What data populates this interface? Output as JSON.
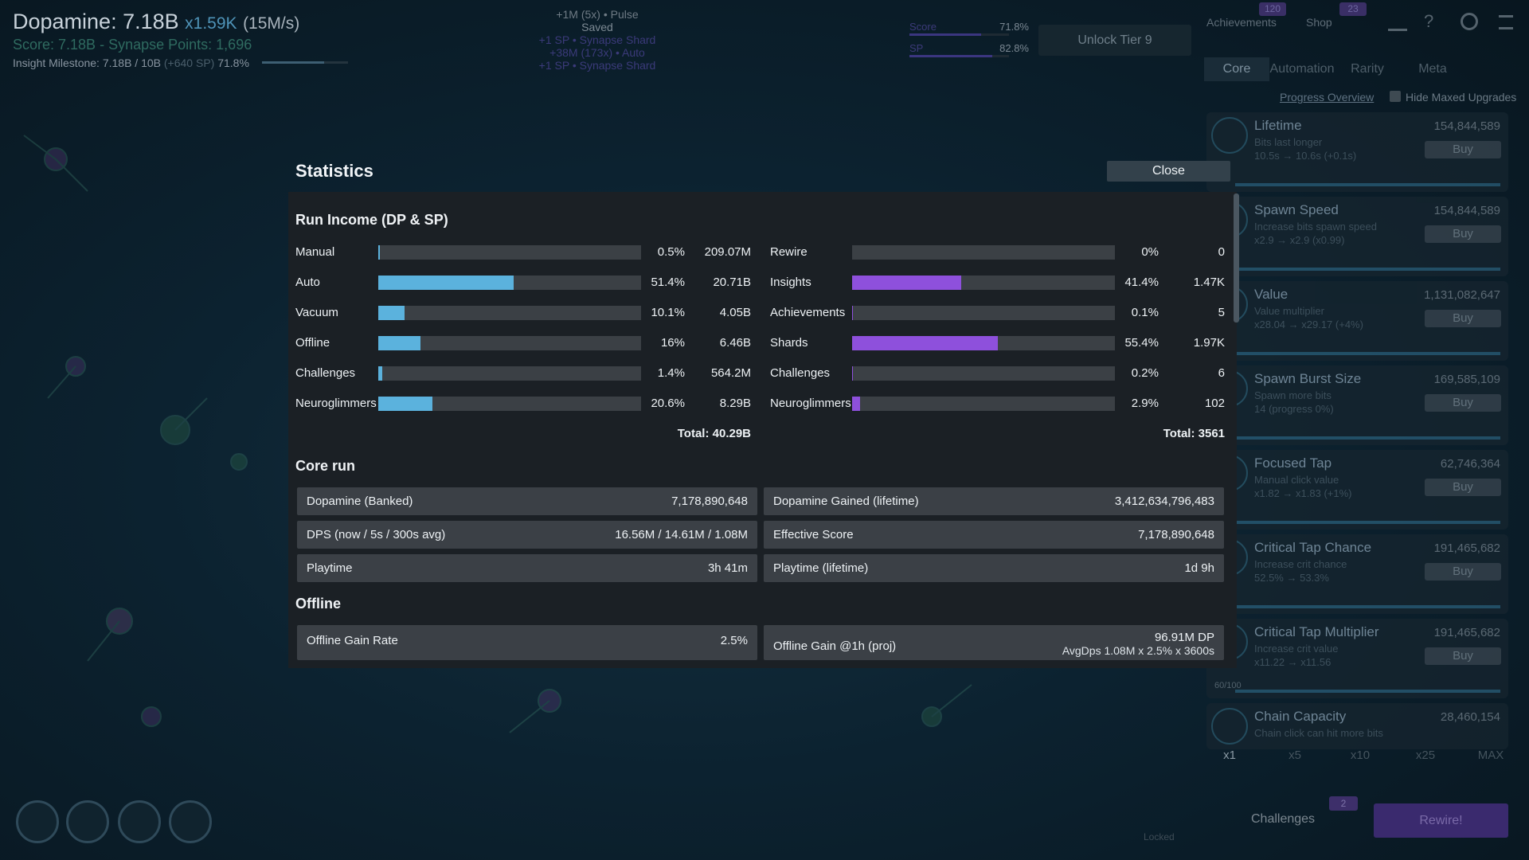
{
  "header": {
    "dopamine": "Dopamine: 7.18B",
    "multiplier": "x1.59K",
    "rate": "(15M/s)",
    "score": "Score: 7.18B",
    "separator": "-",
    "synapse_points": "Synapse Points: 1,696",
    "milestone_label": "Insight Milestone: 7.18B / 10B",
    "milestone_bonus": "(+640 SP)",
    "milestone_percent": 71.8,
    "milestone_percent_label": "71.8%"
  },
  "notifications": [
    "+1M (5x) • Pulse",
    "Saved",
    "+1 SP • Synapse Shard",
    "+38M (173x) • Auto",
    "+1 SP • Synapse Shard"
  ],
  "progress": [
    {
      "label": "Score",
      "percent": 71.8,
      "percent_label": "71.8%"
    },
    {
      "label": "SP",
      "percent": 82.8,
      "percent_label": "82.8%"
    }
  ],
  "unlock_button": "Unlock Tier 9",
  "nav": [
    {
      "label": "Achievements",
      "badge": "120"
    },
    {
      "label": "Shop",
      "badge": "23"
    }
  ],
  "tabs": [
    "Core",
    "Automation",
    "Rarity",
    "Meta"
  ],
  "progress_overview": "Progress Overview",
  "hide_maxed": "Hide Maxed Upgrades",
  "upgrades": [
    {
      "name": "Lifetime",
      "description": "Bits last longer",
      "detail": "10.5s → 10.6s (+0.1s)",
      "cost": "154,844,589",
      "button": "Buy"
    },
    {
      "name": "Spawn Speed",
      "description": "Increase bits spawn speed",
      "detail": "x2.9 → x2.9 (x0.99)",
      "cost": "154,844,589",
      "button": "Buy"
    },
    {
      "name": "Value",
      "description": "Value multiplier",
      "detail": "x28.04 → x29.17 (+4%)",
      "cost": "1,131,082,647",
      "button": "Buy"
    },
    {
      "name": "Spawn Burst Size",
      "description": "Spawn more bits",
      "detail": "14  (progress 0%)",
      "cost": "169,585,109",
      "button": "Buy"
    },
    {
      "name": "Focused Tap",
      "description": "Manual click value",
      "detail": "x1.82 → x1.83 (+1%)",
      "cost": "62,746,364",
      "button": "Buy"
    },
    {
      "name": "Critical Tap Chance",
      "description": "Increase crit chance",
      "detail": "52.5% → 53.3%",
      "cost": "191,465,682",
      "button": "Buy"
    },
    {
      "name": "Critical Tap Multiplier",
      "description": "Increase crit value",
      "detail": "x11.22 → x11.56",
      "cost": "191,465,682",
      "button": "Buy",
      "level": "60/100"
    },
    {
      "name": "Chain Capacity",
      "description": "Chain click can hit more bits",
      "cost": "28,460,154"
    }
  ],
  "buy_amounts": [
    "x1",
    "x5",
    "x10",
    "x25",
    "MAX"
  ],
  "challenges": {
    "label": "Challenges",
    "badge": "2"
  },
  "rewire": "Rewire!",
  "locked": "Locked",
  "statistics": {
    "title": "Statistics",
    "close": "Close",
    "income": {
      "title": "Run Income (DP & SP)",
      "dp": [
        {
          "name": "Manual",
          "percent": 0.5,
          "percent_label": "0.5%",
          "amount": "209.07M"
        },
        {
          "name": "Auto",
          "percent": 51.4,
          "percent_label": "51.4%",
          "amount": "20.71B"
        },
        {
          "name": "Vacuum",
          "percent": 10.1,
          "percent_label": "10.1%",
          "amount": "4.05B"
        },
        {
          "name": "Offline",
          "percent": 16,
          "percent_label": "16%",
          "amount": "6.46B"
        },
        {
          "name": "Challenges",
          "percent": 1.4,
          "percent_label": "1.4%",
          "amount": "564.2M"
        },
        {
          "name": "Neuroglimmers",
          "percent": 20.6,
          "percent_label": "20.6%",
          "amount": "8.29B"
        }
      ],
      "sp": [
        {
          "name": "Rewire",
          "percent": 0,
          "percent_label": "0%",
          "amount": "0"
        },
        {
          "name": "Insights",
          "percent": 41.4,
          "percent_label": "41.4%",
          "amount": "1.47K"
        },
        {
          "name": "Achievements",
          "percent": 0.1,
          "percent_label": "0.1%",
          "amount": "5"
        },
        {
          "name": "Shards",
          "percent": 55.4,
          "percent_label": "55.4%",
          "amount": "1.97K"
        },
        {
          "name": "Challenges",
          "percent": 0.2,
          "percent_label": "0.2%",
          "amount": "6"
        },
        {
          "name": "Neuroglimmers",
          "percent": 2.9,
          "percent_label": "2.9%",
          "amount": "102"
        }
      ],
      "dp_total": "Total: 40.29B",
      "sp_total": "Total: 3561"
    },
    "core_run": {
      "title": "Core run",
      "rows": [
        [
          "Dopamine (Banked)",
          "7,178,890,648"
        ],
        [
          "Dopamine Gained (lifetime)",
          "3,412,634,796,483"
        ],
        [
          "DPS (now / 5s / 300s avg)",
          "16.56M / 14.61M / 1.08M"
        ],
        [
          "Effective Score",
          "7,178,890,648"
        ],
        [
          "Playtime",
          "3h 41m"
        ],
        [
          "Playtime (lifetime)",
          "1d 9h"
        ]
      ]
    },
    "offline": {
      "title": "Offline",
      "rate_label": "Offline Gain Rate",
      "rate": "2.5%",
      "gain_label": "Offline Gain @1h (proj)",
      "gain": "96.91M DP",
      "gain_formula": "AvgDps 1.08M x 2.5% x 3600s"
    }
  }
}
